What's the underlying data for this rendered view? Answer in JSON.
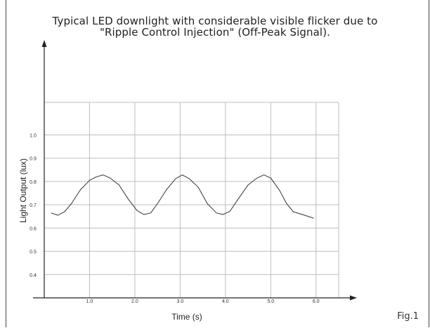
{
  "chart_data": {
    "type": "line",
    "title_lines": [
      "Typical LED downlight with considerable visible flicker due to",
      "\"Ripple Control Injection\" (Off-Peak Signal)."
    ],
    "xlabel": "Time (s)",
    "ylabel": "Light Output (lux)",
    "x_ticks": [
      "1.0",
      "2.0",
      "3.0",
      "4.0",
      "5.0",
      "6.0"
    ],
    "y_ticks": [
      "0.4",
      "0.5",
      "0.6",
      "0.7",
      "0.8",
      "0.9",
      "1.0"
    ],
    "xlim": [
      0,
      6.5
    ],
    "ylim": [
      0.3,
      1.14
    ],
    "grid": true,
    "series": [
      {
        "color": "#333333",
        "x": [
          0.15,
          0.3,
          0.45,
          0.6,
          0.8,
          1.0,
          1.15,
          1.3,
          1.45,
          1.65,
          1.85,
          2.05,
          2.2,
          2.35,
          2.5,
          2.7,
          2.9,
          3.05,
          3.2,
          3.4,
          3.6,
          3.8,
          3.95,
          4.1,
          4.3,
          4.5,
          4.7,
          4.85,
          5.0,
          5.2,
          5.35,
          5.5,
          5.75,
          5.95
        ],
        "y": [
          0.665,
          0.655,
          0.67,
          0.705,
          0.765,
          0.805,
          0.82,
          0.828,
          0.815,
          0.785,
          0.725,
          0.675,
          0.658,
          0.665,
          0.705,
          0.765,
          0.812,
          0.828,
          0.812,
          0.775,
          0.705,
          0.665,
          0.658,
          0.672,
          0.73,
          0.785,
          0.815,
          0.828,
          0.815,
          0.76,
          0.705,
          0.67,
          0.655,
          0.642
        ]
      }
    ]
  },
  "caption": "Fig.1"
}
